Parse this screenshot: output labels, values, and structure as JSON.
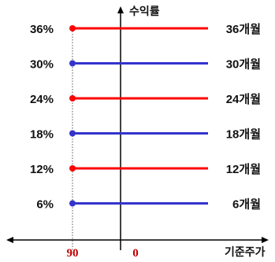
{
  "y_axis_label": "수익률",
  "x_axis_label": "기준주가",
  "x_ticks": {
    "left": "90",
    "right": "0"
  },
  "colors": {
    "red": "#ff0000",
    "blue": "#3333cc",
    "axis": "#000000",
    "tick": "#c00000"
  },
  "rows": [
    {
      "pct": "36%",
      "months": "36개월",
      "color": "red"
    },
    {
      "pct": "30%",
      "months": "30개월",
      "color": "blue"
    },
    {
      "pct": "24%",
      "months": "24개월",
      "color": "red"
    },
    {
      "pct": "18%",
      "months": "18개월",
      "color": "blue"
    },
    {
      "pct": "12%",
      "months": "12개월",
      "color": "red"
    },
    {
      "pct": "6%",
      "months": "6개월",
      "color": "blue"
    }
  ]
}
